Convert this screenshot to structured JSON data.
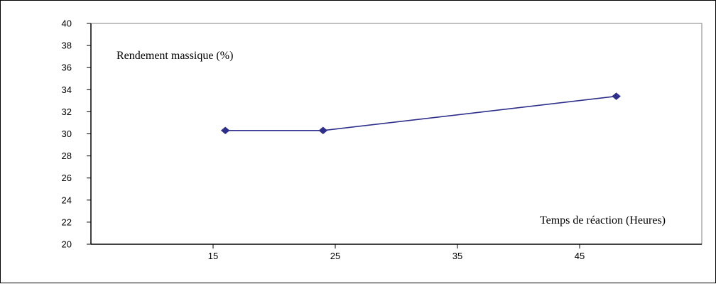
{
  "chart_data": {
    "type": "line",
    "title": "",
    "ylabel": "Rendement massique (%)",
    "xlabel": "Temps de réaction (Heures)",
    "xlim": [
      5,
      55
    ],
    "ylim": [
      20,
      40
    ],
    "x_ticks": [
      15,
      25,
      35,
      45
    ],
    "y_ticks": [
      20,
      22,
      24,
      26,
      28,
      30,
      32,
      34,
      36,
      38,
      40
    ],
    "series": [
      {
        "x": [
          16,
          24,
          48
        ],
        "values": [
          30.3,
          30.3,
          33.4
        ],
        "color": "#2e2e8c"
      }
    ],
    "plot_area_background": "#ffffff",
    "plot_area_border": "#808080",
    "grid": false,
    "legend": "none"
  }
}
